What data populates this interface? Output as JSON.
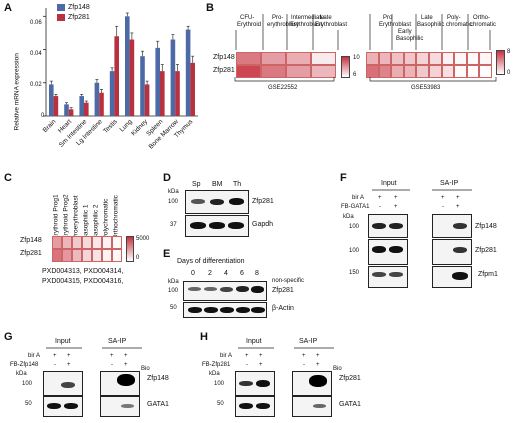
{
  "panels": {
    "A": {
      "letter": "A",
      "ylabel": "Relative mRNA expression",
      "yticks": [
        "0",
        "0.02",
        "0.04",
        "0.06"
      ],
      "legend": [
        "Zfp148",
        "Zfp281"
      ],
      "colors": {
        "Zfp148": "#4d6aa6",
        "Zfp281": "#b7313f"
      },
      "chart_data": {
        "type": "bar",
        "categories": [
          "Brain",
          "Heart",
          "Sm Intestine",
          "Lg Intestine",
          "Testis",
          "Lung",
          "Kidney",
          "Spleen",
          "Bone Marrow",
          "Thymus"
        ],
        "series": [
          {
            "name": "Zfp148",
            "values": [
              0.019,
              0.007,
              0.012,
              0.02,
              0.027,
              0.06,
              0.036,
              0.041,
              0.046,
              0.052
            ]
          },
          {
            "name": "Zfp281",
            "values": [
              0.012,
              0.004,
              0.008,
              0.014,
              0.048,
              0.046,
              0.019,
              0.027,
              0.027,
              0.032
            ]
          }
        ],
        "errors": [
          [
            0.002,
            0.001,
            0.001,
            0.002,
            0.002,
            0.002,
            0.003,
            0.004,
            0.003,
            0.002
          ],
          [
            0.001,
            0.001,
            0.001,
            0.002,
            0.006,
            0.004,
            0.002,
            0.004,
            0.004,
            0.004
          ]
        ],
        "ylim": [
          0,
          0.065
        ]
      }
    },
    "B": {
      "letter": "B",
      "rows": [
        "Zfp148",
        "Zfp281"
      ],
      "left_cols": [
        "CFU-Erythroid",
        "Pro-erythroblast",
        "Intermediate Erythroblast",
        "Late Erythroblast"
      ],
      "left_col_lines": [
        [
          "CFU-",
          "Erythroid"
        ],
        [
          "Pro-",
          "erythroblast"
        ],
        [
          "Intermediate",
          "Erythroblast"
        ],
        [
          "Late",
          "Erythroblast"
        ]
      ],
      "left_values": [
        [
          8.6,
          7.9,
          7.6,
          6.4
        ],
        [
          9.6,
          8.6,
          7.9,
          7.4
        ]
      ],
      "left_scale": [
        "10",
        "6"
      ],
      "left_label": "GSE22552",
      "right_cols": [
        "Pro Erythroblast",
        "Early Basophilic",
        "Late Basophilic",
        "Poly-chromatic",
        "Ortho-chromatic"
      ],
      "right_col_lines": [
        [
          "Pro",
          "Erythroblast"
        ],
        [
          "Early",
          "Basophilic"
        ],
        [
          "Late",
          "Basophilic"
        ],
        [
          "Poly-",
          "chromatic"
        ],
        [
          "Ortho-",
          "chromatic"
        ]
      ],
      "right_values": [
        [
          3.0,
          2.8,
          2.4,
          2.2,
          1.7,
          1.4,
          0.5,
          0.3,
          0.2,
          0.3
        ],
        [
          5.6,
          4.8,
          3.2,
          2.9,
          2.1,
          1.7,
          1.2,
          0.2,
          0.1,
          0.1
        ]
      ],
      "right_scale": [
        "8",
        "0"
      ],
      "right_label": "GSE53983"
    },
    "C": {
      "letter": "C",
      "rows": [
        "Zfp148",
        "Zfp281"
      ],
      "cols": [
        "Erythroid Prog1",
        "Erythroid Prog2",
        "Proerythroblast",
        "Basophilic 1",
        "Basophilic 2",
        "Polychromatic",
        "Orthochromatic"
      ],
      "values": [
        [
          2400,
          1800,
          1300,
          900,
          600,
          350,
          150
        ],
        [
          3400,
          2500,
          1700,
          1000,
          700,
          300,
          200
        ]
      ],
      "scale": [
        "5000",
        "0"
      ],
      "source_lines": [
        "PXD004313, PXD004314,",
        "PXD004315, PXD004316,"
      ]
    },
    "D": {
      "letter": "D",
      "unit": "kDa",
      "lanes": [
        "Sp",
        "BM",
        "Th"
      ],
      "markers": [
        "100",
        "37"
      ],
      "labels": [
        "Zfp281",
        "Gapdh"
      ]
    },
    "E": {
      "letter": "E",
      "title": "Days of differentiation",
      "unit": "kDa",
      "lanes": [
        "0",
        "2",
        "4",
        "6",
        "8"
      ],
      "markers": [
        "100",
        "50"
      ],
      "labels": [
        "non-specific",
        "Zfp281",
        "β-Actin"
      ]
    },
    "F": {
      "letter": "F",
      "groups": [
        "Input",
        "SA-IP"
      ],
      "row_labels": [
        "bir A",
        "FB-GATA1"
      ],
      "signs": [
        [
          "+",
          "+",
          "+",
          "+"
        ],
        [
          "-",
          "+",
          "-",
          "+"
        ]
      ],
      "unit": "kDa",
      "markers": [
        "100",
        "100",
        "150"
      ],
      "labels": [
        "Zfp148",
        "Zfp281",
        "Zfpm1"
      ]
    },
    "G": {
      "letter": "G",
      "groups": [
        "Input",
        "SA-IP"
      ],
      "row_labels": [
        "bir A",
        "FB-Zfp148"
      ],
      "signs": [
        [
          "+",
          "+",
          "+",
          "+"
        ],
        [
          "-",
          "+",
          "-",
          "+"
        ]
      ],
      "unit": "kDa",
      "markers": [
        "100",
        "50"
      ],
      "labels": [
        "Bio",
        "Zfp148",
        "GATA1"
      ]
    },
    "H": {
      "letter": "H",
      "groups": [
        "Input",
        "SA-IP"
      ],
      "row_labels": [
        "bir A",
        "FB-Zfp281"
      ],
      "signs": [
        [
          "+",
          "+",
          "+",
          "+"
        ],
        [
          "-",
          "+",
          "-",
          "+"
        ]
      ],
      "unit": "kDa",
      "markers": [
        "100",
        "50"
      ],
      "labels": [
        "Bio",
        "Zfp281",
        "GATA1"
      ]
    }
  }
}
